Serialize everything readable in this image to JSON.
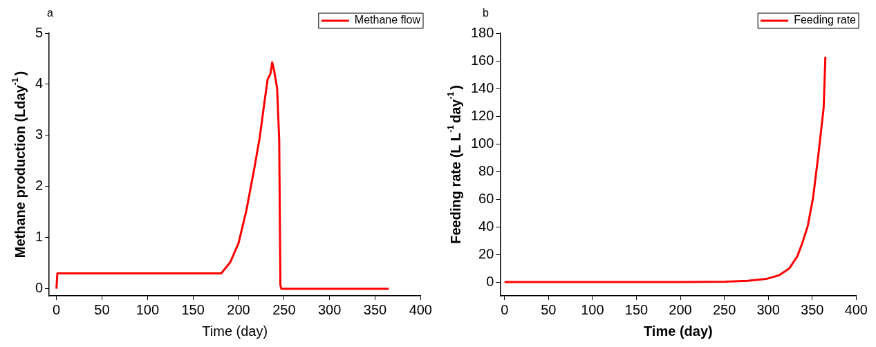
{
  "chart_data": [
    {
      "type": "line",
      "title": "a",
      "xlabel": "Time (day)",
      "ylabel": "Methane production (Lday$^{-1}$)",
      "legend": "top right",
      "grid": false,
      "series": [
        {
          "name": "Methane flow",
          "color": "#ff0000",
          "x": [
            0,
            1,
            2,
            50,
            100,
            150,
            181,
            191,
            200,
            208.6,
            217.4,
            223.3,
            227.7,
            232,
            235,
            237,
            239.4,
            242.4,
            244.7,
            246,
            247,
            300,
            365
          ],
          "values": [
            0,
            0.3,
            0.3,
            0.3,
            0.3,
            0.3,
            0.3,
            0.52,
            0.89,
            1.53,
            2.36,
            2.96,
            3.55,
            4.1,
            4.2,
            4.43,
            4.24,
            3.92,
            2.91,
            0.07,
            0,
            0,
            0
          ]
        }
      ],
      "xlim": [
        -8,
        400
      ],
      "xticks": [
        0,
        50,
        100,
        150,
        200,
        250,
        300,
        350,
        400
      ],
      "ylim": [
        -0.14,
        5
      ],
      "yticks": [
        0,
        1,
        2,
        3,
        4,
        5
      ]
    },
    {
      "type": "line",
      "title": "b",
      "xlabel": "Time (day)",
      "ylabel": "Feeding rate (L L$^{-1}$day$^{-1}$)",
      "legend": "top right",
      "grid": false,
      "series": [
        {
          "name": "Feeding rate",
          "color": "#ff0000",
          "x": [
            0,
            100,
            200,
            251,
            276.5,
            297.4,
            312,
            324,
            333,
            339,
            345,
            351,
            357,
            363,
            365
          ],
          "values": [
            0,
            0,
            0,
            0.3,
            0.9,
            2.2,
            4.8,
            9.9,
            18.5,
            28.7,
            40.7,
            61,
            92,
            126,
            163
          ]
        }
      ],
      "xlim": [
        -5,
        400
      ],
      "xticks": [
        0,
        50,
        100,
        150,
        200,
        250,
        300,
        350,
        400
      ],
      "ylim": [
        -10,
        180
      ],
      "yticks": [
        0,
        20,
        40,
        60,
        80,
        100,
        120,
        140,
        160,
        180
      ]
    }
  ]
}
